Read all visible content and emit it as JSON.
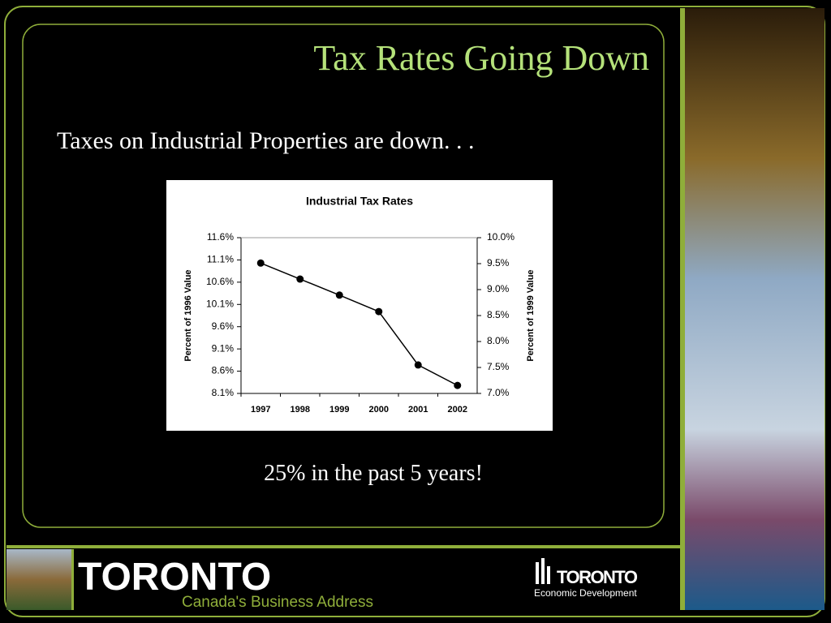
{
  "slide": {
    "title": "Tax Rates Going Down",
    "subtitle": "Taxes on Industrial Properties are down. . .",
    "caption": "25% in the past 5 years!",
    "brand": "TORONTO",
    "tagline": "Canada's Business Address",
    "logo_title": "TORONTO",
    "logo_subtitle": "Economic Development"
  },
  "chart_data": {
    "type": "line",
    "title": "Industrial Tax Rates",
    "categories": [
      "1997",
      "1998",
      "1999",
      "2000",
      "2001",
      "2002"
    ],
    "values": [
      11.03,
      10.67,
      10.31,
      9.94,
      8.74,
      8.28
    ],
    "color": "#000000",
    "ylabel": "Percent of 1996 Value",
    "y2label": "Percent of 1999 Value",
    "ylim": [
      8.1,
      11.6
    ],
    "yticks": [
      {
        "value": 8.1,
        "label": "8.1%"
      },
      {
        "value": 8.6,
        "label": "8.6%"
      },
      {
        "value": 9.1,
        "label": "9.1%"
      },
      {
        "value": 9.6,
        "label": "9.6%"
      },
      {
        "value": 10.1,
        "label": "10.1%"
      },
      {
        "value": 10.6,
        "label": "10.6%"
      },
      {
        "value": 11.1,
        "label": "11.1%"
      },
      {
        "value": 11.6,
        "label": "11.6%"
      }
    ],
    "y2lim": [
      7.0,
      10.0
    ],
    "y2ticks": [
      {
        "value": 7.0,
        "label": "7.0%"
      },
      {
        "value": 7.5,
        "label": "7.5%"
      },
      {
        "value": 8.0,
        "label": "8.0%"
      },
      {
        "value": 8.5,
        "label": "8.5%"
      },
      {
        "value": 9.0,
        "label": "9.0%"
      },
      {
        "value": 9.5,
        "label": "9.5%"
      },
      {
        "value": 10.0,
        "label": "10.0%"
      }
    ],
    "grid": false
  }
}
